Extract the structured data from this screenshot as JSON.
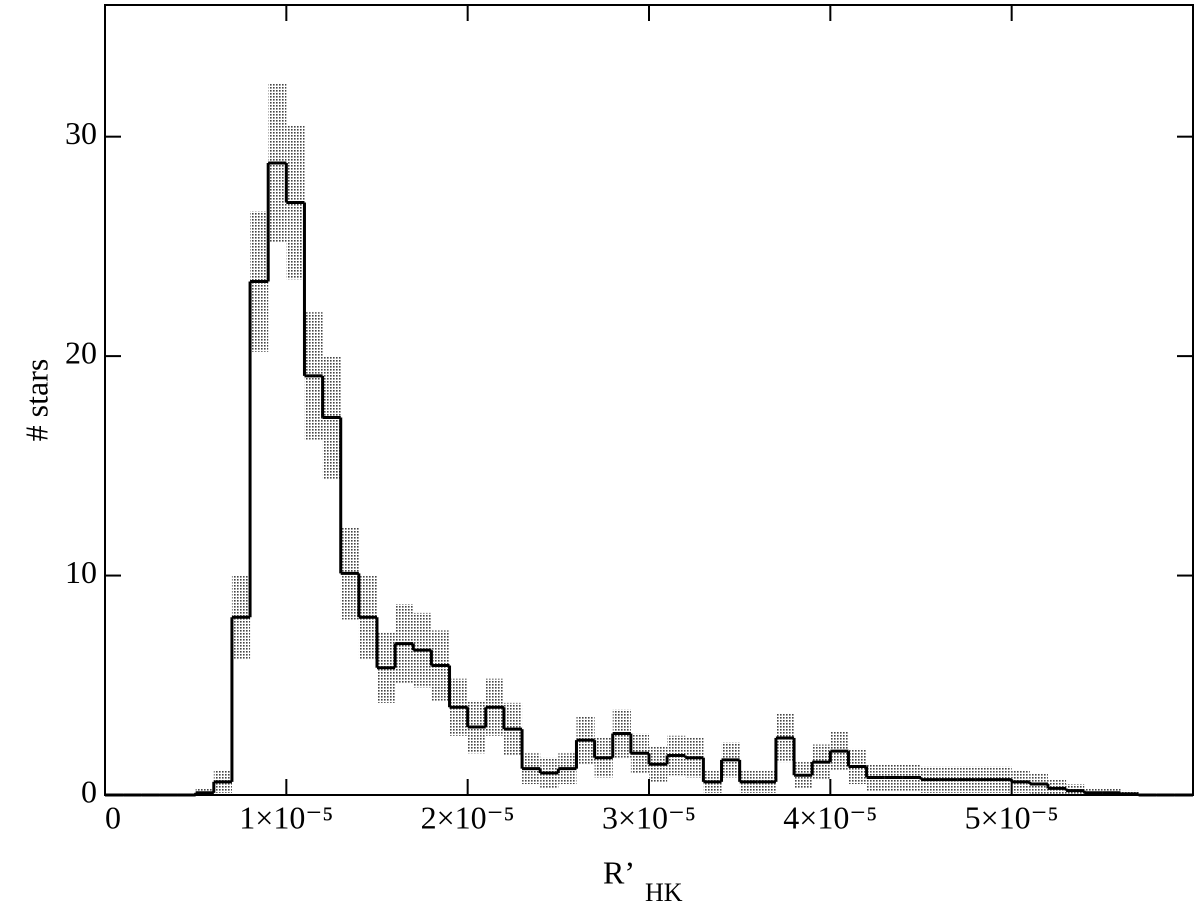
{
  "chart_data": {
    "type": "histogram",
    "xlabel": {
      "main": "R’",
      "sub": "HK"
    },
    "ylabel": "# stars",
    "bins": [
      0,
      1e-06,
      2e-06,
      3e-06,
      4e-06,
      5e-06,
      6e-06,
      7e-06,
      8e-06,
      9e-06,
      1e-05,
      1.1e-05,
      1.2e-05,
      1.3e-05,
      1.4e-05,
      1.5e-05,
      1.6e-05,
      1.7e-05,
      1.8e-05,
      1.9e-05,
      2e-05,
      2.1e-05,
      2.2e-05,
      2.3e-05,
      2.4e-05,
      2.5e-05,
      2.6e-05,
      2.7e-05,
      2.8e-05,
      2.9e-05,
      3e-05,
      3.1e-05,
      3.2e-05,
      3.3e-05,
      3.4e-05,
      3.5e-05,
      3.6e-05,
      3.7e-05,
      3.8e-05,
      3.9e-05,
      4e-05,
      4.1e-05,
      4.2e-05,
      4.3e-05,
      4.4e-05,
      4.5e-05,
      4.6e-05,
      4.7e-05,
      4.8e-05,
      4.9e-05,
      5e-05,
      5.1e-05,
      5.2e-05,
      5.3e-05,
      5.4e-05,
      5.5e-05,
      5.6e-05,
      5.7e-05,
      5.8e-05,
      5.9e-05,
      6e-05
    ],
    "values": [
      0,
      0,
      0,
      0,
      0,
      0.1,
      0.6,
      8.1,
      23.4,
      28.8,
      27.0,
      19.1,
      17.2,
      10.1,
      8.1,
      5.8,
      6.9,
      6.6,
      5.9,
      4.0,
      3.1,
      4.0,
      3.0,
      1.2,
      1.0,
      1.2,
      2.5,
      1.7,
      2.8,
      1.9,
      1.4,
      1.8,
      1.7,
      0.6,
      1.6,
      0.6,
      0.6,
      2.6,
      0.9,
      1.5,
      2.0,
      1.3,
      0.8,
      0.8,
      0.8,
      0.7,
      0.7,
      0.7,
      0.7,
      0.7,
      0.6,
      0.5,
      0.3,
      0.2,
      0.1,
      0.1,
      0.05,
      0,
      0,
      0
    ],
    "errors": [
      0,
      0,
      0,
      0,
      0,
      0.2,
      0.5,
      1.9,
      3.2,
      3.6,
      3.5,
      2.9,
      2.8,
      2.1,
      1.9,
      1.6,
      1.8,
      1.7,
      1.6,
      1.3,
      1.2,
      1.3,
      1.2,
      0.7,
      0.7,
      0.7,
      1.1,
      0.9,
      1.1,
      0.9,
      0.8,
      0.9,
      0.9,
      0.5,
      0.8,
      0.5,
      0.5,
      1.1,
      0.6,
      0.8,
      0.9,
      0.8,
      0.6,
      0.6,
      0.6,
      0.6,
      0.6,
      0.6,
      0.6,
      0.6,
      0.5,
      0.5,
      0.4,
      0.3,
      0.2,
      0.2,
      0.15,
      0,
      0,
      0
    ],
    "color": "#000000",
    "error_color": "#555555",
    "xlim": [
      0,
      6e-05
    ],
    "ylim": [
      0,
      36
    ],
    "xticks": [
      0,
      {
        "value": 1e-05,
        "label": "1×10⁻⁵"
      },
      {
        "value": 2e-05,
        "label": "2×10⁻⁵"
      },
      {
        "value": 3e-05,
        "label": "3×10⁻⁵"
      },
      {
        "value": 4e-05,
        "label": "4×10⁻⁵"
      },
      {
        "value": 5e-05,
        "label": "5×10⁻⁵"
      }
    ],
    "yticks": [
      0,
      10,
      20,
      30
    ],
    "grid": false
  }
}
